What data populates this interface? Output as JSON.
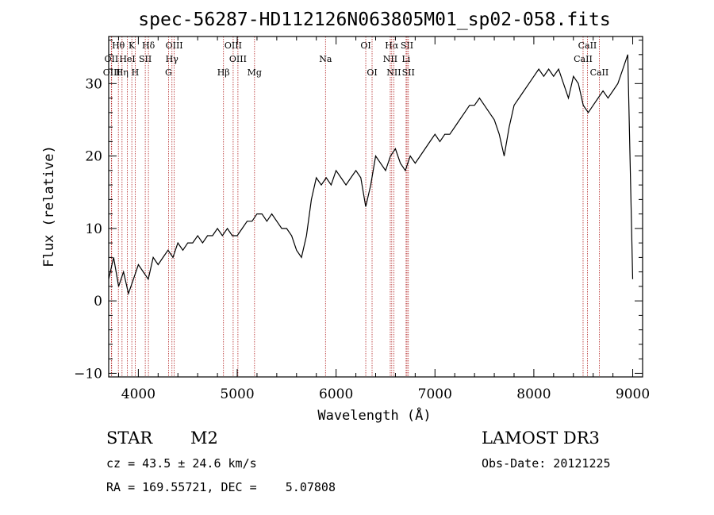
{
  "chart_data": {
    "type": "line",
    "title": "spec-56287-HD112126N063805M01_sp02-058.fits",
    "xlabel": "Wavelength (Å)",
    "ylabel": "Flux (relative)",
    "xlim": [
      3700,
      9100
    ],
    "ylim": [
      -10.5,
      36.5
    ],
    "x_ticks": [
      4000,
      5000,
      6000,
      7000,
      8000,
      9000
    ],
    "y_ticks": [
      -10,
      0,
      10,
      20,
      30
    ],
    "series": [
      {
        "name": "flux",
        "x": [
          3700,
          3750,
          3800,
          3850,
          3900,
          3950,
          4000,
          4050,
          4100,
          4150,
          4200,
          4250,
          4300,
          4350,
          4400,
          4450,
          4500,
          4550,
          4600,
          4650,
          4700,
          4750,
          4800,
          4850,
          4900,
          4950,
          5000,
          5050,
          5100,
          5150,
          5200,
          5250,
          5300,
          5350,
          5400,
          5450,
          5500,
          5550,
          5600,
          5650,
          5700,
          5750,
          5800,
          5850,
          5900,
          5950,
          6000,
          6050,
          6100,
          6150,
          6200,
          6250,
          6300,
          6350,
          6400,
          6450,
          6500,
          6550,
          6600,
          6650,
          6700,
          6750,
          6800,
          6850,
          6900,
          6950,
          7000,
          7050,
          7100,
          7150,
          7200,
          7250,
          7300,
          7350,
          7400,
          7450,
          7500,
          7550,
          7600,
          7650,
          7700,
          7750,
          7800,
          7850,
          7900,
          7950,
          8000,
          8050,
          8100,
          8150,
          8200,
          8250,
          8300,
          8350,
          8400,
          8450,
          8500,
          8550,
          8600,
          8650,
          8700,
          8750,
          8800,
          8850,
          8900,
          8950,
          9000
        ],
        "values": [
          3,
          6,
          2,
          4,
          1,
          3,
          5,
          4,
          3,
          6,
          5,
          6,
          7,
          6,
          8,
          7,
          8,
          8,
          9,
          8,
          9,
          9,
          10,
          9,
          10,
          9,
          9,
          10,
          11,
          11,
          12,
          12,
          11,
          12,
          11,
          10,
          10,
          9,
          7,
          6,
          9,
          14,
          17,
          16,
          17,
          16,
          18,
          17,
          16,
          17,
          18,
          17,
          13,
          16,
          20,
          19,
          18,
          20,
          21,
          19,
          18,
          20,
          19,
          20,
          21,
          22,
          23,
          22,
          23,
          23,
          24,
          25,
          26,
          27,
          27,
          28,
          27,
          26,
          25,
          23,
          20,
          24,
          27,
          28,
          29,
          30,
          31,
          32,
          31,
          32,
          31,
          32,
          30,
          28,
          31,
          30,
          27,
          26,
          27,
          28,
          29,
          28,
          29,
          30,
          32,
          34,
          3
        ]
      }
    ],
    "lines": [
      {
        "name": "Hθ",
        "x": 3798,
        "row": 0
      },
      {
        "name": "OII",
        "x": 3727,
        "row": 1
      },
      {
        "name": "OIII",
        "x": 3730,
        "row": 2
      },
      {
        "name": "K",
        "x": 3934,
        "row": 0
      },
      {
        "name": "HeI",
        "x": 3889,
        "row": 1
      },
      {
        "name": "Hη",
        "x": 3835,
        "row": 2
      },
      {
        "name": "SII",
        "x": 4070,
        "row": 1
      },
      {
        "name": "H",
        "x": 3968,
        "row": 2
      },
      {
        "name": "Hδ",
        "x": 4102,
        "row": 0
      },
      {
        "name": "OIII",
        "x": 4363,
        "row": 0
      },
      {
        "name": "Hγ",
        "x": 4340,
        "row": 1
      },
      {
        "name": "G",
        "x": 4305,
        "row": 2
      },
      {
        "name": "OIII",
        "x": 4959,
        "row": 0
      },
      {
        "name": "OIII",
        "x": 5007,
        "row": 1
      },
      {
        "name": "Hβ",
        "x": 4861,
        "row": 2
      },
      {
        "name": "Mg",
        "x": 5175,
        "row": 2
      },
      {
        "name": "Na",
        "x": 5893,
        "row": 1
      },
      {
        "name": "OI",
        "x": 6300,
        "row": 0
      },
      {
        "name": "OI",
        "x": 6364,
        "row": 2
      },
      {
        "name": "Hα",
        "x": 6563,
        "row": 0
      },
      {
        "name": "NII",
        "x": 6548,
        "row": 1
      },
      {
        "name": "NII",
        "x": 6584,
        "row": 2
      },
      {
        "name": "SII",
        "x": 6717,
        "row": 0
      },
      {
        "name": "Li",
        "x": 6708,
        "row": 1
      },
      {
        "name": "SII",
        "x": 6731,
        "row": 2
      },
      {
        "name": "CaII",
        "x": 8542,
        "row": 0
      },
      {
        "name": "CaII",
        "x": 8498,
        "row": 1
      },
      {
        "name": "CaII",
        "x": 8662,
        "row": 2
      }
    ]
  },
  "info": {
    "object_class": "STAR",
    "subclass": "M2",
    "survey": "LAMOST DR3",
    "cz": "cz = 43.5 ± 24.6 km/s",
    "obs_date": "Obs-Date: 20121225",
    "coords": "RA = 169.55721, DEC =    5.07808"
  }
}
